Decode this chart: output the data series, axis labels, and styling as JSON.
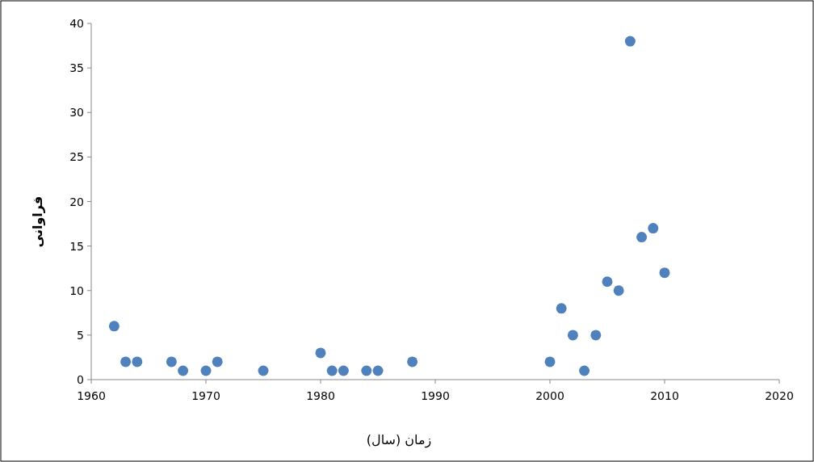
{
  "chart_data": {
    "type": "scatter",
    "xlabel": "زمان (سال)",
    "ylabel": "فراوانی",
    "x": [
      1962,
      1963,
      1964,
      1967,
      1968,
      1970,
      1971,
      1975,
      1980,
      1981,
      1982,
      1984,
      1985,
      1988,
      2000,
      2001,
      2002,
      2003,
      2004,
      2005,
      2006,
      2007,
      2008,
      2009,
      2010
    ],
    "series": [
      {
        "color": "#4f81bd",
        "values": [
          6,
          2,
          2,
          2,
          1,
          1,
          2,
          1,
          3,
          1,
          1,
          1,
          1,
          2,
          2,
          8,
          5,
          1,
          5,
          11,
          10,
          38,
          16,
          17,
          12
        ]
      }
    ],
    "xlim": [
      1960,
      2020
    ],
    "xticks": [
      1960,
      1970,
      1980,
      1990,
      2000,
      2010,
      2020
    ],
    "ylim": [
      0,
      40
    ],
    "yticks": [
      0,
      5,
      10,
      15,
      20,
      25,
      30,
      35,
      40
    ],
    "marker": "circle"
  }
}
